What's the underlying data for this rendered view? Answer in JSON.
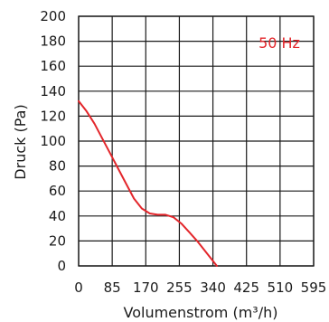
{
  "chart_data": {
    "type": "line",
    "title": "",
    "xlabel": "Volumenstrom (m³/h)",
    "ylabel": "Druck (Pa)",
    "xlim": [
      0,
      595
    ],
    "ylim": [
      0,
      200
    ],
    "x_ticks": [
      0,
      85,
      170,
      255,
      340,
      425,
      510,
      595
    ],
    "y_ticks": [
      0,
      20,
      40,
      60,
      80,
      100,
      120,
      140,
      160,
      180,
      200
    ],
    "grid": true,
    "annotation": "50 Hz",
    "colors": {
      "curve": "#e3262b",
      "annotation": "#e3262b",
      "grid": "#1a1a1a"
    },
    "series": [
      {
        "points": [
          [
            0,
            132
          ],
          [
            20,
            124
          ],
          [
            40,
            114
          ],
          [
            60,
            102
          ],
          [
            80,
            90
          ],
          [
            100,
            78
          ],
          [
            120,
            66
          ],
          [
            140,
            54
          ],
          [
            160,
            46
          ],
          [
            180,
            42
          ],
          [
            200,
            41
          ],
          [
            220,
            41
          ],
          [
            240,
            39
          ],
          [
            260,
            34
          ],
          [
            280,
            27
          ],
          [
            300,
            20
          ],
          [
            320,
            12
          ],
          [
            340,
            4
          ],
          [
            350,
            0
          ]
        ]
      }
    ]
  }
}
